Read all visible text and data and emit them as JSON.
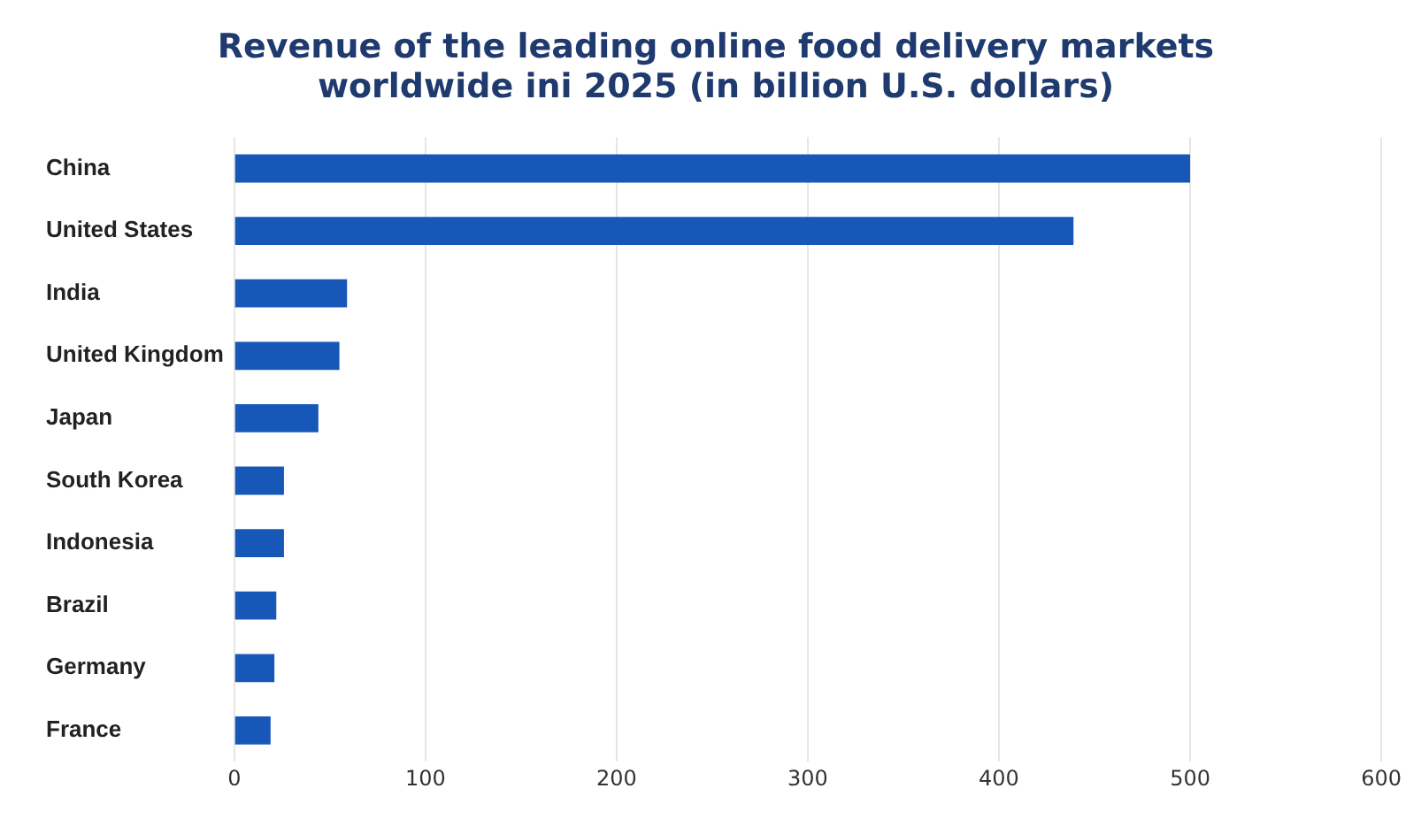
{
  "chart_data": {
    "type": "bar",
    "orientation": "horizontal",
    "title": "Revenue of the leading online food delivery markets worldwide ini 2025 (in billion U.S. dollars)",
    "categories": [
      "China",
      "United States",
      "India",
      "United Kingdom",
      "Japan",
      "South Korea",
      "Indonesia",
      "Brazil",
      "Germany",
      "France"
    ],
    "values": [
      500,
      439,
      59,
      55,
      44,
      26,
      26,
      22,
      21,
      19
    ],
    "color": "#1757b8",
    "xlim": [
      0,
      600
    ],
    "xticks": [
      0,
      100,
      200,
      300,
      400,
      500,
      600
    ],
    "grid": "x",
    "legend": false
  }
}
